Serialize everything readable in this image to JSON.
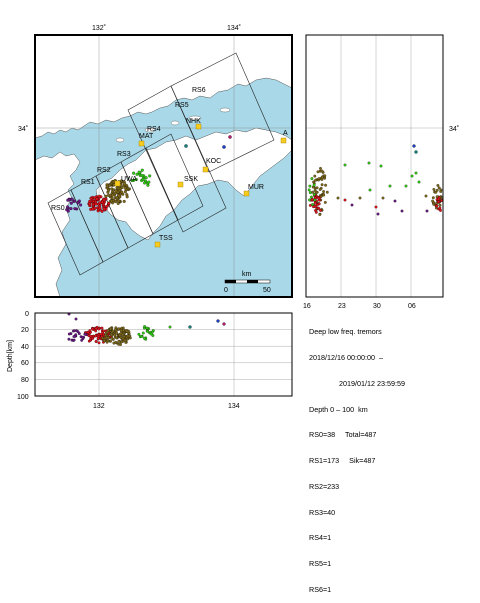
{
  "map": {
    "lon_ticks": [
      "132˚",
      "134˚"
    ],
    "lat_ticks": [
      "34˚"
    ],
    "stations": [
      "NHK",
      "MAT",
      "UWA",
      "SSK",
      "KOC",
      "MUR",
      "TSS",
      "A"
    ],
    "regions": [
      "RS0",
      "RS1",
      "RS2",
      "RS3",
      "RS4",
      "RS5",
      "RS6"
    ],
    "scale": {
      "unit": "km",
      "start": "0",
      "end": "50"
    },
    "colors": {
      "sea": "#a9d8e8",
      "land": "#ffffff",
      "station": "#f7cc1f",
      "rs0": "#6b1c84",
      "rs1": "#e2121c",
      "rs2": "#7f6a1c",
      "rs3": "#31cc14",
      "rs4": "#177d79",
      "rs5": "#1d3fbf",
      "rs6": "#b41d6d"
    }
  },
  "time_panel": {
    "x_ticks": [
      "16",
      "23",
      "30",
      "06"
    ],
    "y_tick": "34˚"
  },
  "depth_panel": {
    "ylabel": "Depth[km]",
    "y_ticks": [
      "0",
      "20",
      "40",
      "60",
      "80",
      "100"
    ],
    "x_ticks": [
      "132",
      "134"
    ]
  },
  "info": {
    "title": "Deep low freq. tremors",
    "start": "2018/12/16 00:00:00  –",
    "end": "2019/01/12 23:59:59",
    "depth": "Depth 0 – 100  km",
    "rs0": "RS0=38     Total=487",
    "rs1": "RS1=173     Sik=487",
    "rs2": "RS2=233",
    "rs3": "RS3=40",
    "rs4": "RS4=1",
    "rs5": "RS5=1",
    "rs6": "RS6=1"
  }
}
